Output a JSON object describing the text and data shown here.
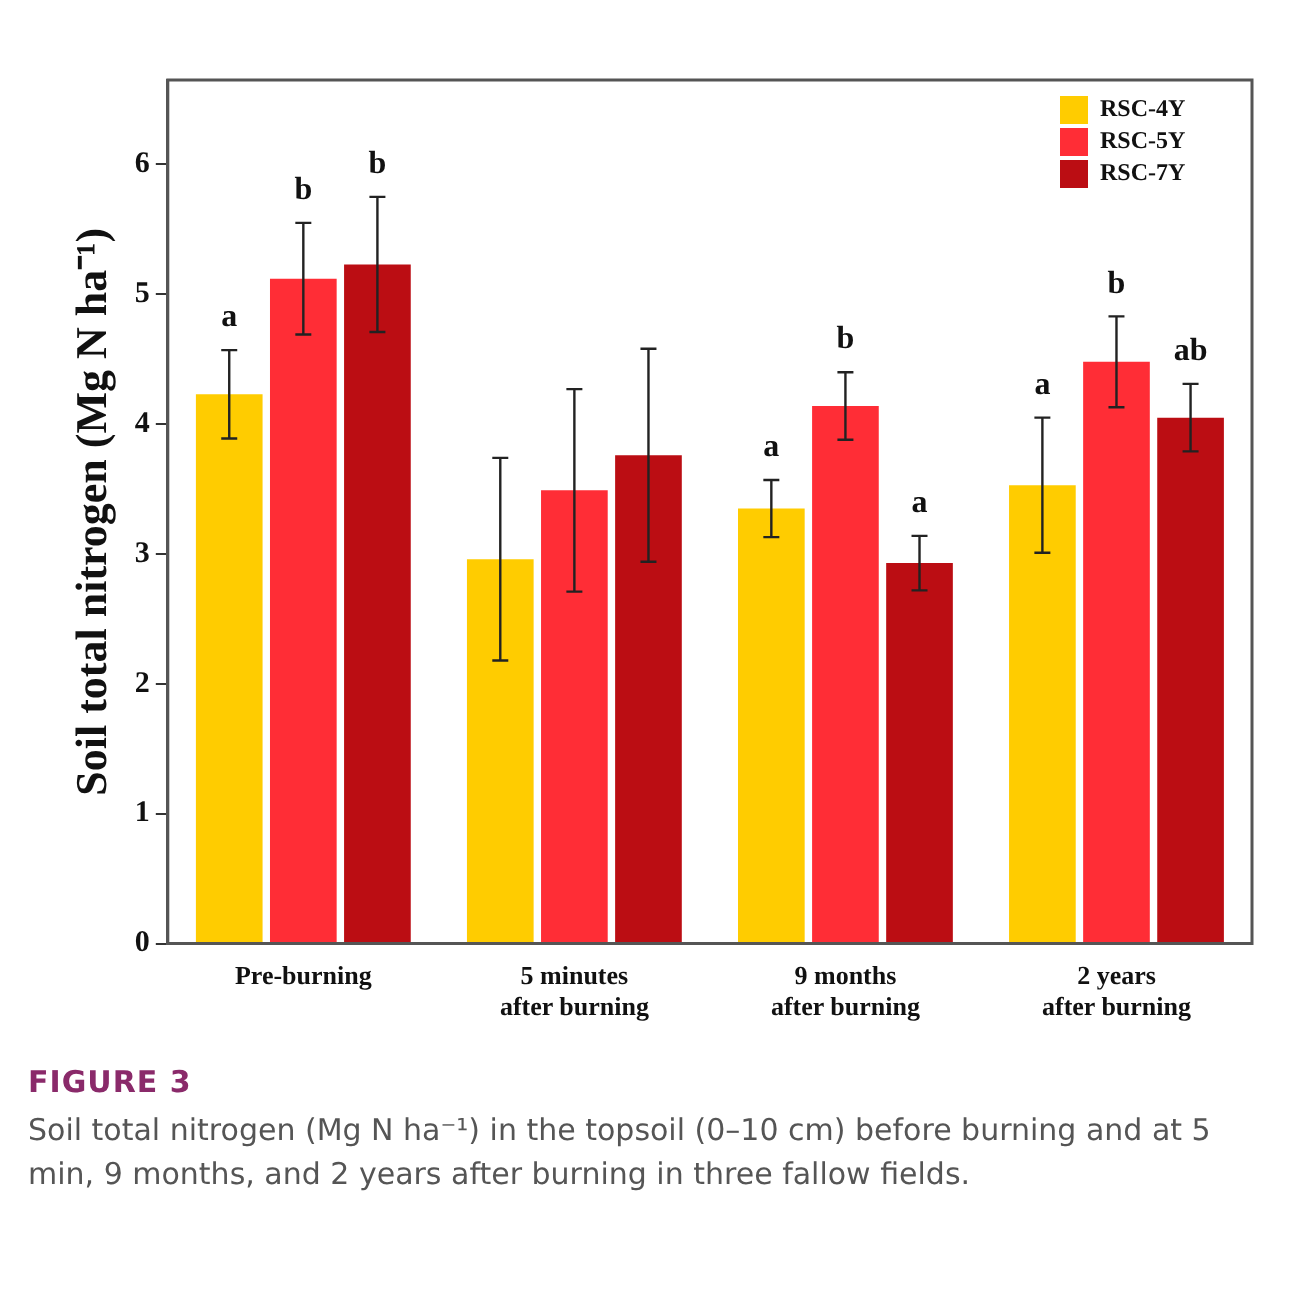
{
  "chart_data": {
    "type": "bar",
    "categories": [
      "Pre-burning",
      "5 minutes\nafter burning",
      "9 months\nafter burning",
      "2 years\nafter burning"
    ],
    "ylabel": "Soil total nitrogen (Mg N ha⁻¹)",
    "ylim": [
      0,
      6.65
    ],
    "yticks": [
      0,
      1,
      2,
      3,
      4,
      5,
      6
    ],
    "series": [
      {
        "name": "RSC-4Y",
        "color": "#ffcc00",
        "values": [
          4.23,
          2.96,
          3.35,
          3.53
        ],
        "errors": [
          0.34,
          0.78,
          0.22,
          0.52
        ],
        "value_labels": [
          "a",
          null,
          "a",
          "a"
        ]
      },
      {
        "name": "RSC-5Y",
        "color": "#ff2d36",
        "values": [
          5.12,
          3.49,
          4.14,
          4.48
        ],
        "errors": [
          0.43,
          0.78,
          0.26,
          0.35
        ],
        "value_labels": [
          "b",
          null,
          "b",
          "b"
        ]
      },
      {
        "name": "RSC-7Y",
        "color": "#bb0d13",
        "values": [
          5.23,
          3.76,
          2.93,
          4.05
        ],
        "errors": [
          0.52,
          0.82,
          0.21,
          0.26
        ],
        "value_labels": [
          "b",
          null,
          "a",
          "ab"
        ]
      }
    ],
    "legend": "top right",
    "grid": false,
    "annotations": [
      "FIGURE 3",
      "Soil total nitrogen (Mg N ha⁻¹) in the topsoil (0–10 cm) before burning and at 5 min, 9 months, and 2 years after burning in three fallow fields."
    ]
  }
}
